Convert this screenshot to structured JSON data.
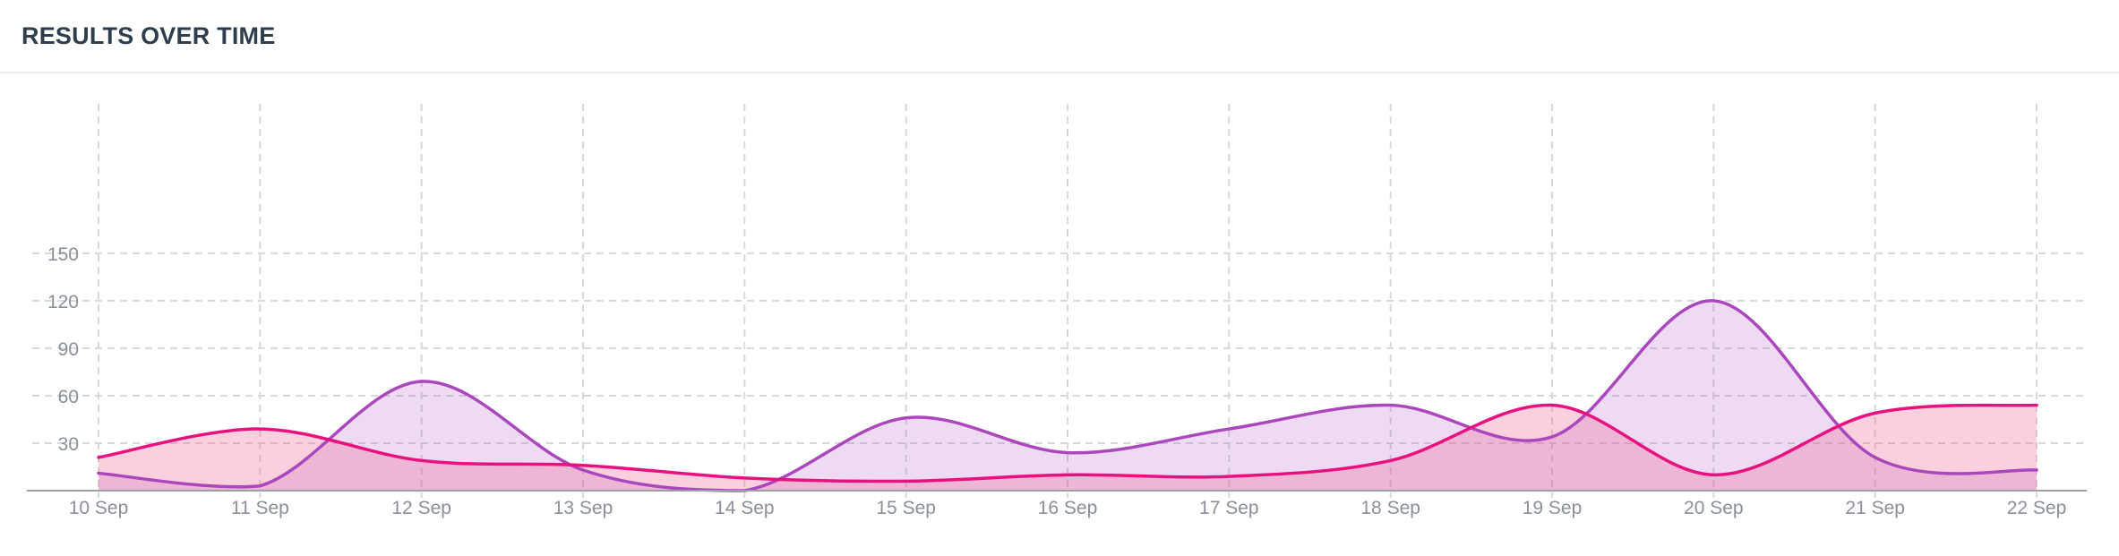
{
  "card": {
    "title": "RESULTS OVER TIME"
  },
  "chart_data": {
    "type": "area",
    "categories": [
      "10 Sep",
      "11 Sep",
      "12 Sep",
      "13 Sep",
      "14 Sep",
      "15 Sep",
      "16 Sep",
      "17 Sep",
      "18 Sep",
      "19 Sep",
      "20 Sep",
      "21 Sep",
      "22 Sep"
    ],
    "series": [
      {
        "values": [
          11,
          3,
          69,
          13,
          0,
          46,
          24,
          39,
          54,
          34,
          120,
          21,
          13
        ],
        "color": "#ab47bc",
        "fill": "#ab47bc",
        "fill_opacity": 0.2
      },
      {
        "values": [
          21,
          39,
          19,
          16,
          8,
          6,
          10,
          9,
          19,
          54,
          10,
          49,
          54
        ],
        "color": "#e8117f",
        "fill": "#f06292",
        "fill_opacity": 0.3
      }
    ],
    "y_ticks": [
      30,
      60,
      90,
      120,
      150
    ],
    "ylim": [
      0,
      150
    ],
    "grid": true,
    "grid_style": "dashed",
    "legend": "none",
    "xlabel": "",
    "ylabel": "",
    "axis_label_color": "#8a8f98"
  }
}
